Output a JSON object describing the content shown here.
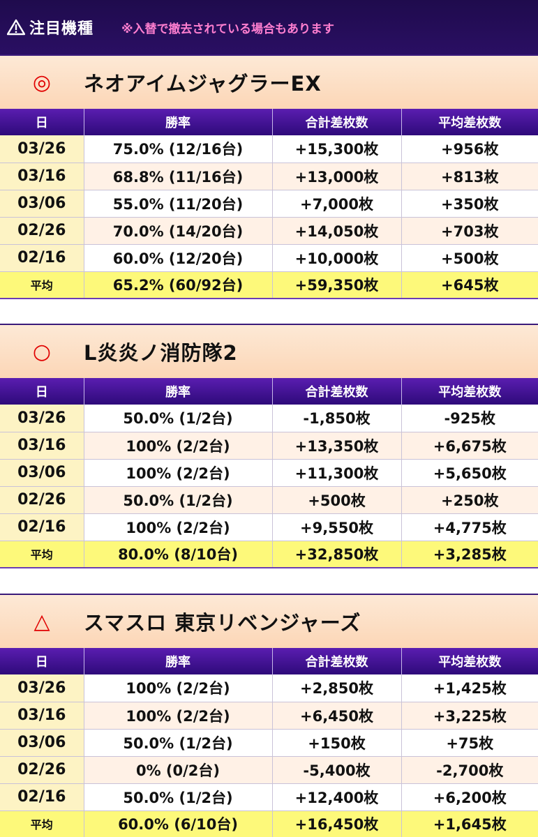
{
  "header": {
    "icon": "warning-icon",
    "title": "注目機種",
    "note": "※入替で撤去されている場合もあります"
  },
  "columns": {
    "date": "日",
    "rate": "勝率",
    "total": "合計差枚数",
    "avg": "平均差枚数"
  },
  "sections": [
    {
      "mark": "◎",
      "name": "ネオアイムジャグラーEX",
      "rows": [
        {
          "date": "03/26",
          "rate": "75.0% (12/16台)",
          "total": "+15,300枚",
          "avg": "+956枚"
        },
        {
          "date": "03/16",
          "rate": "68.8% (11/16台)",
          "total": "+13,000枚",
          "avg": "+813枚"
        },
        {
          "date": "03/06",
          "rate": "55.0% (11/20台)",
          "total": "+7,000枚",
          "avg": "+350枚"
        },
        {
          "date": "02/26",
          "rate": "70.0% (14/20台)",
          "total": "+14,050枚",
          "avg": "+703枚"
        },
        {
          "date": "02/16",
          "rate": "60.0% (12/20台)",
          "total": "+10,000枚",
          "avg": "+500枚"
        }
      ],
      "summary": {
        "label": "平均",
        "rate": "65.2% (60/92台)",
        "total": "+59,350枚",
        "avg": "+645枚"
      }
    },
    {
      "mark": "○",
      "name": "L炎炎ノ消防隊2",
      "rows": [
        {
          "date": "03/26",
          "rate": "50.0% (1/2台)",
          "total": "-1,850枚",
          "avg": "-925枚"
        },
        {
          "date": "03/16",
          "rate": "100% (2/2台)",
          "total": "+13,350枚",
          "avg": "+6,675枚"
        },
        {
          "date": "03/06",
          "rate": "100% (2/2台)",
          "total": "+11,300枚",
          "avg": "+5,650枚"
        },
        {
          "date": "02/26",
          "rate": "50.0% (1/2台)",
          "total": "+500枚",
          "avg": "+250枚"
        },
        {
          "date": "02/16",
          "rate": "100% (2/2台)",
          "total": "+9,550枚",
          "avg": "+4,775枚"
        }
      ],
      "summary": {
        "label": "平均",
        "rate": "80.0% (8/10台)",
        "total": "+32,850枚",
        "avg": "+3,285枚"
      }
    },
    {
      "mark": "△",
      "name": "スマスロ 東京リベンジャーズ",
      "rows": [
        {
          "date": "03/26",
          "rate": "100% (2/2台)",
          "total": "+2,850枚",
          "avg": "+1,425枚"
        },
        {
          "date": "03/16",
          "rate": "100% (2/2台)",
          "total": "+6,450枚",
          "avg": "+3,225枚"
        },
        {
          "date": "03/06",
          "rate": "50.0% (1/2台)",
          "total": "+150枚",
          "avg": "+75枚"
        },
        {
          "date": "02/26",
          "rate": "0% (0/2台)",
          "total": "-5,400枚",
          "avg": "-2,700枚"
        },
        {
          "date": "02/16",
          "rate": "50.0% (1/2台)",
          "total": "+12,400枚",
          "avg": "+6,200枚"
        }
      ],
      "summary": {
        "label": "平均",
        "rate": "60.0% (6/10台)",
        "total": "+16,450枚",
        "avg": "+1,645枚"
      }
    }
  ]
}
